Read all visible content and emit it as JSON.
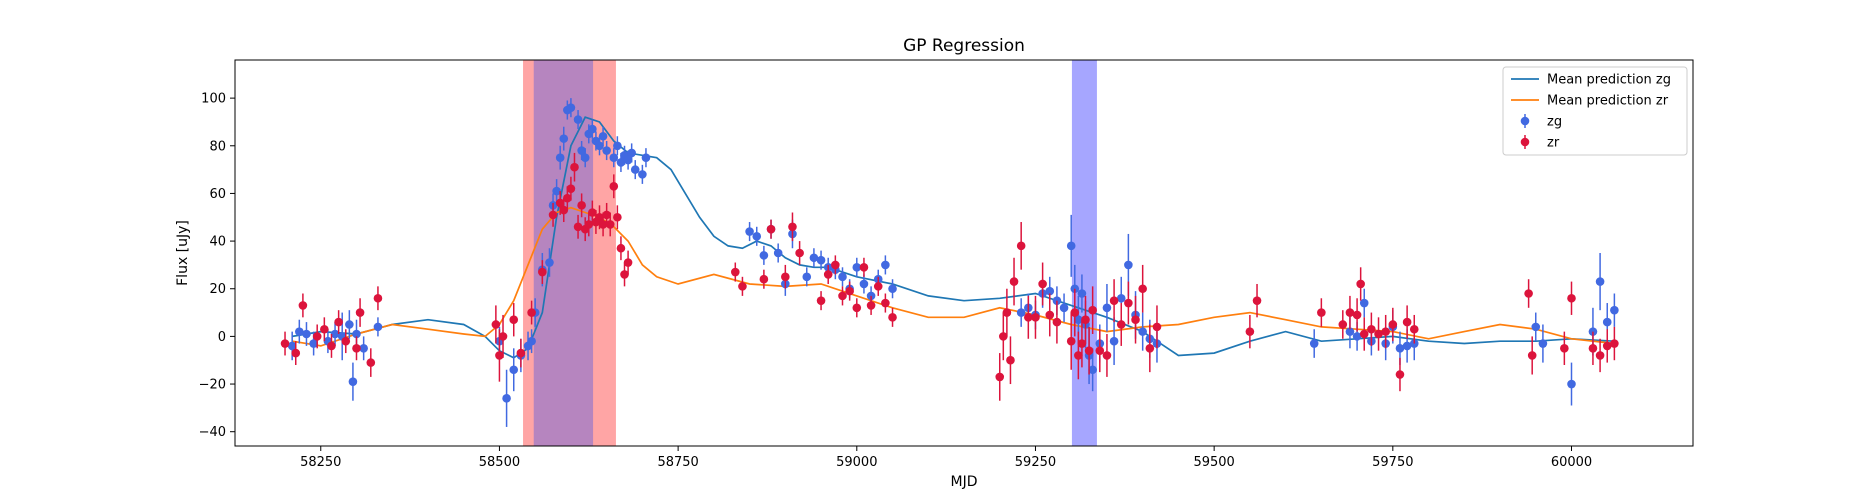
{
  "chart_data": {
    "type": "scatter",
    "title": "GP Regression",
    "xlabel": "MJD",
    "ylabel": "Flux [uJy]",
    "xlim": [
      58130,
      60170
    ],
    "ylim": [
      -46,
      116
    ],
    "xticks": [
      58250,
      58500,
      58750,
      59000,
      59250,
      59500,
      59750,
      60000
    ],
    "yticks": [
      -40,
      -20,
      0,
      20,
      40,
      60,
      80,
      100
    ],
    "grid": false,
    "legend_position": "top-right",
    "shaded_regions": [
      {
        "x0": 58533,
        "x1": 58663,
        "color": "#ff7f7f",
        "opacity": 0.7
      },
      {
        "x0": 58548,
        "x1": 58631,
        "color": "#7a6bd6",
        "opacity": 0.55
      },
      {
        "x0": 59301,
        "x1": 59336,
        "color": "#8080ff",
        "opacity": 0.7
      }
    ],
    "series": [
      {
        "name": "Mean prediction zg",
        "kind": "line",
        "color": "#1f77b4",
        "x": [
          58210,
          58250,
          58300,
          58350,
          58400,
          58450,
          58480,
          58500,
          58520,
          58540,
          58560,
          58580,
          58600,
          58620,
          58640,
          58660,
          58680,
          58700,
          58720,
          58740,
          58760,
          58780,
          58800,
          58820,
          58840,
          58860,
          58880,
          58900,
          58920,
          58940,
          58960,
          58980,
          59000,
          59050,
          59100,
          59150,
          59200,
          59250,
          59300,
          59350,
          59400,
          59430,
          59450,
          59500,
          59550,
          59600,
          59650,
          59700,
          59750,
          59800,
          59850,
          59900,
          59950,
          60000,
          60060
        ],
        "y": [
          0,
          2,
          1,
          5,
          7,
          5,
          0,
          -6,
          -9,
          -5,
          10,
          50,
          80,
          92,
          90,
          82,
          77,
          76,
          75,
          70,
          60,
          50,
          42,
          38,
          37,
          40,
          38,
          33,
          30,
          29,
          29,
          27,
          25,
          22,
          17,
          15,
          16,
          18,
          13,
          8,
          2,
          -4,
          -8,
          -7,
          -2,
          2,
          -2,
          -1,
          0,
          -2,
          -3,
          -2,
          -2,
          -1,
          -2
        ]
      },
      {
        "name": "Mean prediction zr",
        "kind": "line",
        "color": "#ff7f0e",
        "x": [
          58210,
          58250,
          58300,
          58350,
          58400,
          58450,
          58480,
          58500,
          58520,
          58540,
          58560,
          58580,
          58600,
          58620,
          58640,
          58660,
          58680,
          58700,
          58720,
          58750,
          58800,
          58850,
          58900,
          58950,
          59000,
          59050,
          59100,
          59150,
          59200,
          59250,
          59300,
          59350,
          59400,
          59450,
          59500,
          59550,
          59600,
          59650,
          59700,
          59750,
          59800,
          59850,
          59900,
          59950,
          60000,
          60060
        ],
        "y": [
          -2,
          -4,
          1,
          5,
          3,
          1,
          0,
          5,
          15,
          30,
          45,
          52,
          54,
          52,
          50,
          46,
          40,
          30,
          25,
          22,
          26,
          22,
          21,
          22,
          17,
          12,
          8,
          8,
          12,
          9,
          5,
          2,
          4,
          5,
          8,
          10,
          7,
          4,
          3,
          2,
          -1,
          2,
          5,
          3,
          -1,
          -3
        ]
      },
      {
        "name": "zg",
        "kind": "errorbar",
        "color": "#4169e1",
        "x": [
          58210,
          58220,
          58230,
          58240,
          58260,
          58270,
          58280,
          58290,
          58295,
          58300,
          58310,
          58330,
          58500,
          58510,
          58520,
          58530,
          58540,
          58545,
          58550,
          58560,
          58570,
          58575,
          58580,
          58585,
          58590,
          58595,
          58600,
          58610,
          58615,
          58620,
          58625,
          58630,
          58635,
          58640,
          58645,
          58650,
          58660,
          58665,
          58670,
          58675,
          58680,
          58685,
          58690,
          58700,
          58705,
          58850,
          58860,
          58870,
          58880,
          58890,
          58900,
          58910,
          58930,
          58940,
          58950,
          58960,
          58970,
          58980,
          58990,
          59000,
          59010,
          59020,
          59030,
          59040,
          59050,
          59230,
          59240,
          59250,
          59260,
          59270,
          59280,
          59290,
          59300,
          59305,
          59310,
          59315,
          59320,
          59325,
          59330,
          59340,
          59350,
          59360,
          59370,
          59380,
          59390,
          59400,
          59410,
          59420,
          59640,
          59690,
          59700,
          59710,
          59720,
          59740,
          59750,
          59760,
          59770,
          59780,
          59950,
          59960,
          60000,
          60030,
          60040,
          60050,
          60060
        ],
        "y": [
          -4,
          2,
          1,
          -3,
          -2,
          1,
          0,
          5,
          -19,
          1,
          -5,
          4,
          -2,
          -26,
          -14,
          -8,
          -4,
          -2,
          10,
          28,
          31,
          55,
          61,
          75,
          83,
          95,
          96,
          91,
          78,
          75,
          85,
          87,
          82,
          80,
          84,
          78,
          75,
          80,
          73,
          76,
          74,
          77,
          70,
          68,
          75,
          44,
          42,
          34,
          45,
          35,
          22,
          43,
          25,
          33,
          32,
          29,
          28,
          25,
          20,
          29,
          22,
          17,
          24,
          30,
          20,
          10,
          12,
          9,
          18,
          19,
          15,
          12,
          38,
          20,
          7,
          18,
          5,
          -8,
          -14,
          -3,
          12,
          -2,
          16,
          30,
          9,
          2,
          -1,
          -3,
          -3,
          2,
          0,
          14,
          -2,
          -3,
          4,
          -5,
          -4,
          -3,
          4,
          -3,
          -20,
          2,
          23,
          6,
          11
        ],
        "yerr": [
          6,
          5,
          5,
          5,
          5,
          5,
          10,
          6,
          8,
          6,
          5,
          4,
          6,
          12,
          9,
          7,
          6,
          5,
          6,
          7,
          6,
          5,
          5,
          5,
          5,
          4,
          4,
          4,
          4,
          4,
          4,
          4,
          4,
          4,
          4,
          4,
          4,
          4,
          4,
          4,
          4,
          4,
          4,
          4,
          4,
          4,
          4,
          4,
          4,
          4,
          5,
          6,
          4,
          4,
          4,
          4,
          4,
          4,
          4,
          4,
          4,
          4,
          4,
          4,
          4,
          6,
          6,
          6,
          6,
          6,
          6,
          6,
          13,
          10,
          10,
          8,
          10,
          12,
          9,
          8,
          10,
          10,
          9,
          13,
          10,
          8,
          8,
          8,
          6,
          7,
          6,
          6,
          6,
          7,
          7,
          7,
          7,
          7,
          6,
          8,
          9,
          10,
          12,
          8,
          7
        ]
      },
      {
        "name": "zr",
        "kind": "errorbar",
        "color": "#dc143c",
        "x": [
          58200,
          58215,
          58225,
          58245,
          58255,
          58265,
          58275,
          58285,
          58300,
          58305,
          58320,
          58330,
          58495,
          58500,
          58505,
          58520,
          58530,
          58545,
          58560,
          58575,
          58585,
          58590,
          58595,
          58600,
          58605,
          58610,
          58615,
          58620,
          58625,
          58630,
          58635,
          58640,
          58645,
          58650,
          58655,
          58660,
          58665,
          58670,
          58675,
          58680,
          58830,
          58840,
          58870,
          58880,
          58900,
          58910,
          58920,
          58950,
          58960,
          58970,
          58980,
          58990,
          59000,
          59010,
          59020,
          59030,
          59040,
          59050,
          59200,
          59205,
          59210,
          59215,
          59220,
          59230,
          59240,
          59250,
          59260,
          59270,
          59280,
          59300,
          59305,
          59310,
          59315,
          59320,
          59325,
          59330,
          59340,
          59350,
          59360,
          59370,
          59380,
          59390,
          59400,
          59410,
          59420,
          59550,
          59560,
          59650,
          59680,
          59690,
          59700,
          59705,
          59710,
          59720,
          59730,
          59740,
          59750,
          59760,
          59770,
          59780,
          59940,
          59945,
          59990,
          60000,
          60030,
          60040,
          60050,
          60060
        ],
        "y": [
          -3,
          -7,
          13,
          0,
          3,
          -4,
          6,
          -2,
          -5,
          10,
          -11,
          16,
          5,
          -8,
          0,
          7,
          -7,
          10,
          27,
          51,
          56,
          53,
          58,
          62,
          71,
          46,
          55,
          45,
          47,
          52,
          48,
          50,
          47,
          51,
          47,
          63,
          50,
          37,
          26,
          31,
          27,
          21,
          24,
          45,
          25,
          46,
          35,
          15,
          26,
          30,
          17,
          19,
          12,
          29,
          13,
          21,
          14,
          8,
          -17,
          0,
          10,
          -10,
          23,
          38,
          8,
          8,
          22,
          9,
          6,
          -2,
          10,
          -8,
          -3,
          7,
          -6,
          11,
          -6,
          -8,
          15,
          5,
          14,
          7,
          20,
          -5,
          4,
          2,
          15,
          10,
          5,
          10,
          9,
          22,
          1,
          3,
          1,
          2,
          5,
          -16,
          6,
          3,
          18,
          -8,
          -5,
          16,
          -5,
          -8,
          -4,
          -3
        ],
        "yerr": [
          5,
          5,
          5,
          5,
          5,
          5,
          5,
          5,
          5,
          6,
          6,
          5,
          8,
          11,
          9,
          7,
          6,
          5,
          5,
          5,
          5,
          5,
          5,
          5,
          6,
          5,
          5,
          5,
          5,
          5,
          5,
          5,
          5,
          5,
          5,
          5,
          5,
          5,
          5,
          5,
          4,
          4,
          4,
          4,
          5,
          6,
          5,
          4,
          4,
          4,
          4,
          4,
          4,
          4,
          4,
          4,
          4,
          4,
          10,
          10,
          10,
          10,
          10,
          10,
          9,
          9,
          9,
          9,
          9,
          12,
          10,
          10,
          10,
          10,
          10,
          10,
          9,
          9,
          9,
          9,
          9,
          10,
          10,
          10,
          9,
          7,
          7,
          6,
          6,
          7,
          7,
          7,
          7,
          7,
          7,
          7,
          7,
          7,
          7,
          6,
          6,
          8,
          7,
          7,
          7,
          7,
          7,
          7
        ]
      }
    ]
  }
}
